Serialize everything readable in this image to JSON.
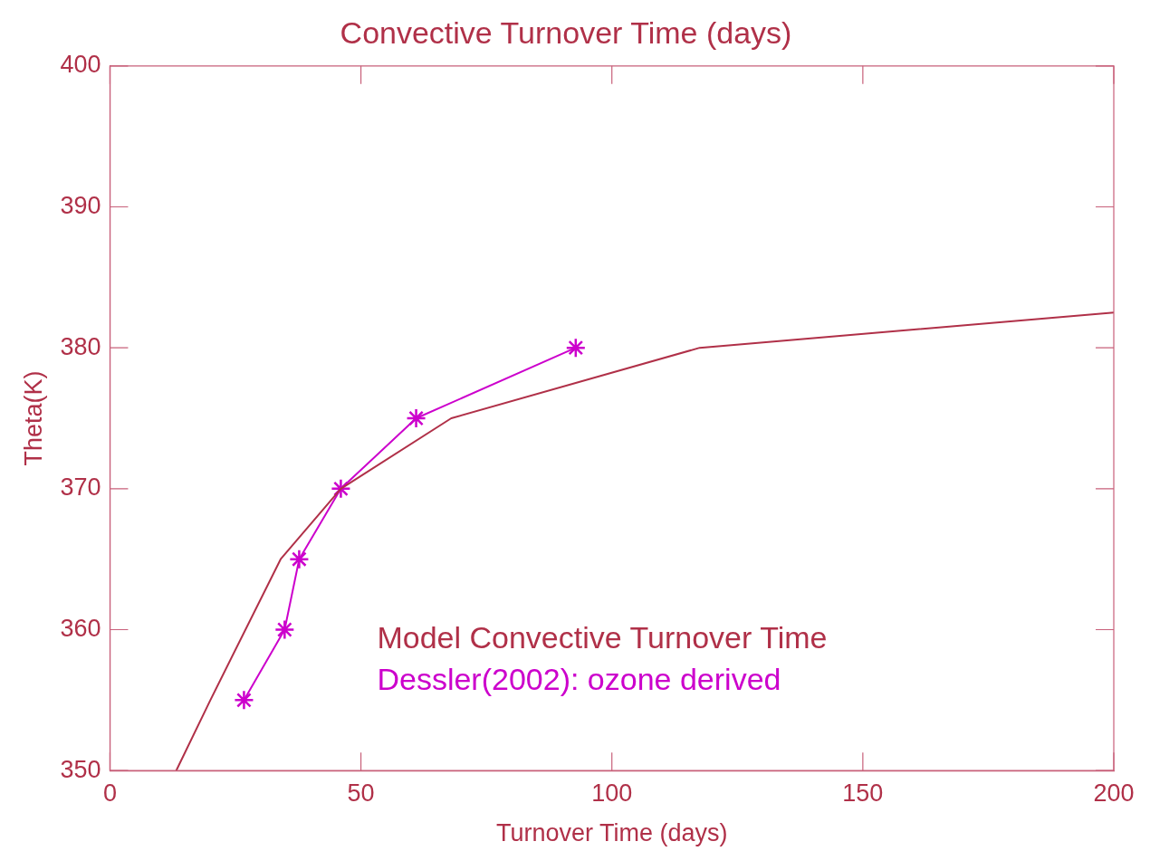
{
  "chart_data": {
    "type": "line",
    "title": "Convective Turnover Time (days)",
    "xlabel": "Turnover Time (days)",
    "ylabel": "Theta(K)",
    "xlim": [
      0,
      200
    ],
    "ylim": [
      350,
      400
    ],
    "xticks": [
      0,
      50,
      100,
      150,
      200
    ],
    "yticks": [
      350,
      360,
      370,
      380,
      390,
      400
    ],
    "grid": false,
    "legend": "bottom",
    "series": [
      {
        "name": "Model Convective Turnover Time",
        "color": "#b03048",
        "marker": "none",
        "x": [
          13.2,
          20,
          34,
          46,
          68,
          117.5,
          200
        ],
        "values": [
          350,
          355,
          365,
          370,
          375,
          380,
          382.5
        ]
      },
      {
        "name": "Dessler(2002): ozone derived",
        "color": "#cc00cc",
        "marker": "cross",
        "x": [
          26.7,
          34.8,
          37.7,
          46,
          61,
          92.8
        ],
        "values": [
          355,
          360,
          365,
          370,
          375,
          380
        ]
      }
    ]
  }
}
